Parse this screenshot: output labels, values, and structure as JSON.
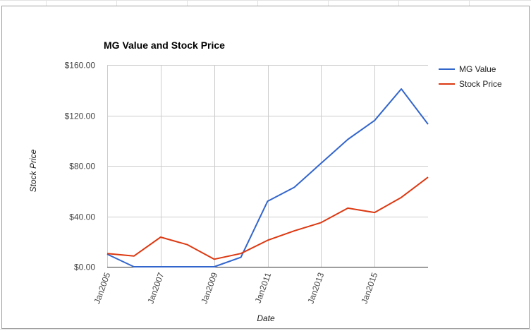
{
  "colors": {
    "mg_value": "#3366cc",
    "stock_price": "#dc3912",
    "grid": "#cccccc",
    "axis": "#333333"
  },
  "chart_data": {
    "type": "line",
    "title": "MG Value and Stock Price",
    "xlabel": "Date",
    "ylabel": "Stock Price",
    "x": [
      "2005",
      "2006",
      "2007",
      "2008",
      "2009",
      "2010",
      "2011",
      "2012",
      "2013",
      "2014",
      "2015",
      "2016",
      "2017"
    ],
    "x_ticks": [
      "Jan2005",
      "Jan2007",
      "Jan2009",
      "Jan2011",
      "Jan2013",
      "Jan2015"
    ],
    "y_ticks": [
      "$0.00",
      "$40.00",
      "$80.00",
      "$120.00",
      "$160.00"
    ],
    "ylim": [
      0,
      160
    ],
    "grid": true,
    "legend_position": "right",
    "series": [
      {
        "name": "MG Value",
        "color": "#3366cc",
        "values": [
          10,
          0,
          0,
          0,
          0,
          7.5,
          52,
          63,
          82,
          101,
          116,
          141,
          113
        ]
      },
      {
        "name": "Stock Price",
        "color": "#dc3912",
        "values": [
          10.5,
          8.5,
          23.5,
          17.5,
          6,
          10.5,
          21,
          28.5,
          35,
          46.5,
          43,
          55,
          71
        ]
      }
    ]
  }
}
